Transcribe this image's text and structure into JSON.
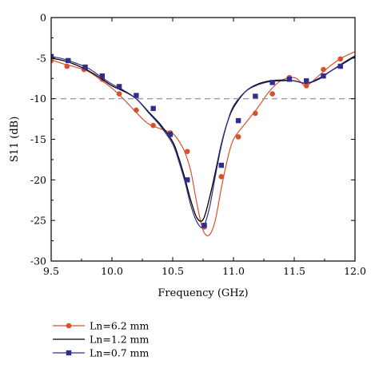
{
  "chart_data": {
    "type": "line",
    "xlabel": "Frequency (GHz)",
    "ylabel": "S11 (dB)",
    "xlim": [
      9.5,
      12.0
    ],
    "ylim": [
      -30,
      0
    ],
    "xticks": [
      9.5,
      10.0,
      10.5,
      11.0,
      11.5,
      12.0
    ],
    "xtick_labels": [
      "9.5",
      "10.0",
      "10.5",
      "11.0",
      "11.5",
      "12.0"
    ],
    "yticks": [
      0,
      -5,
      -10,
      -15,
      -20,
      -25,
      -30
    ],
    "ytick_labels": [
      "0",
      "-5",
      "-10",
      "-15",
      "-20",
      "-25",
      "-30"
    ],
    "reference_line": {
      "y": -10,
      "style": "dashed"
    },
    "grid": false,
    "legend_placement": "below-left",
    "series": [
      {
        "name": "Ln=6.2 mm",
        "color": "#d9512c",
        "marker": "circle",
        "x": [
          9.5,
          9.6,
          9.7,
          9.8,
          9.9,
          10.0,
          10.1,
          10.2,
          10.3,
          10.4,
          10.5,
          10.55,
          10.6,
          10.65,
          10.7,
          10.75,
          10.8,
          10.85,
          10.9,
          10.95,
          11.0,
          11.1,
          11.2,
          11.3,
          11.4,
          11.5,
          11.55,
          11.6,
          11.7,
          11.8,
          11.9,
          12.0
        ],
        "y": [
          -5.2,
          -5.7,
          -6.1,
          -6.6,
          -7.6,
          -8.7,
          -10.1,
          -11.7,
          -13.1,
          -13.7,
          -14.3,
          -15.2,
          -16.6,
          -19.0,
          -23.0,
          -26.2,
          -26.8,
          -25.0,
          -21.0,
          -17.5,
          -15.0,
          -13.0,
          -11.1,
          -9.0,
          -7.7,
          -7.4,
          -7.9,
          -8.4,
          -7.2,
          -5.9,
          -4.9,
          -4.2
        ],
        "marker_x": [
          9.5,
          9.63,
          9.77,
          9.92,
          10.06,
          10.2,
          10.34,
          10.48,
          10.62,
          10.76,
          10.9,
          11.04,
          11.18,
          11.32,
          11.46,
          11.6,
          11.74,
          11.88
        ],
        "marker_y": [
          -5.3,
          -6.0,
          -6.4,
          -7.6,
          -9.4,
          -11.4,
          -13.3,
          -14.2,
          -16.5,
          -25.8,
          -19.6,
          -14.7,
          -11.8,
          -9.4,
          -7.4,
          -8.4,
          -6.4,
          -5.1
        ]
      },
      {
        "name": "Ln=1.2 mm",
        "color": "#000000",
        "marker": "none",
        "x": [
          9.5,
          9.6,
          9.7,
          9.8,
          9.9,
          10.0,
          10.1,
          10.2,
          10.3,
          10.4,
          10.5,
          10.55,
          10.6,
          10.65,
          10.7,
          10.75,
          10.8,
          10.85,
          10.9,
          10.95,
          11.0,
          11.1,
          11.2,
          11.3,
          11.4,
          11.5,
          11.6,
          11.7,
          11.8,
          11.9,
          12.0
        ],
        "y": [
          -5.0,
          -5.3,
          -5.8,
          -6.5,
          -7.4,
          -8.4,
          -9.1,
          -10.0,
          -11.6,
          -13.2,
          -15.3,
          -17.3,
          -19.8,
          -22.6,
          -24.7,
          -24.9,
          -22.4,
          -19.1,
          -15.6,
          -12.9,
          -11.1,
          -9.1,
          -8.2,
          -7.8,
          -7.7,
          -7.8,
          -8.1,
          -7.6,
          -6.6,
          -5.7,
          -4.8
        ]
      },
      {
        "name": "Ln=0.7 mm",
        "color": "#2e2e8c",
        "marker": "square",
        "x": [
          9.5,
          9.6,
          9.7,
          9.8,
          9.9,
          10.0,
          10.1,
          10.2,
          10.3,
          10.4,
          10.5,
          10.55,
          10.6,
          10.65,
          10.7,
          10.75,
          10.8,
          10.85,
          10.9,
          10.95,
          11.0,
          11.1,
          11.2,
          11.3,
          11.4,
          11.5,
          11.6,
          11.7,
          11.8,
          11.9,
          12.0
        ],
        "y": [
          -4.8,
          -5.1,
          -5.6,
          -6.2,
          -7.2,
          -8.2,
          -9.0,
          -10.0,
          -11.7,
          -13.4,
          -15.6,
          -17.7,
          -20.2,
          -23.2,
          -25.2,
          -25.8,
          -23.6,
          -19.6,
          -15.8,
          -12.9,
          -10.9,
          -9.1,
          -8.3,
          -7.9,
          -7.8,
          -7.8,
          -8.1,
          -7.5,
          -6.6,
          -5.6,
          -4.7
        ],
        "marker_x": [
          9.5,
          9.64,
          9.78,
          9.92,
          10.06,
          10.2,
          10.34,
          10.48,
          10.62,
          10.76,
          10.9,
          11.04,
          11.18,
          11.32,
          11.46,
          11.6,
          11.74,
          11.88
        ],
        "marker_y": [
          -4.8,
          -5.3,
          -6.1,
          -7.2,
          -8.5,
          -9.6,
          -11.2,
          -14.4,
          -20.0,
          -25.6,
          -18.2,
          -12.7,
          -9.7,
          -8.0,
          -7.6,
          -7.8,
          -7.2,
          -6.0
        ]
      }
    ]
  }
}
